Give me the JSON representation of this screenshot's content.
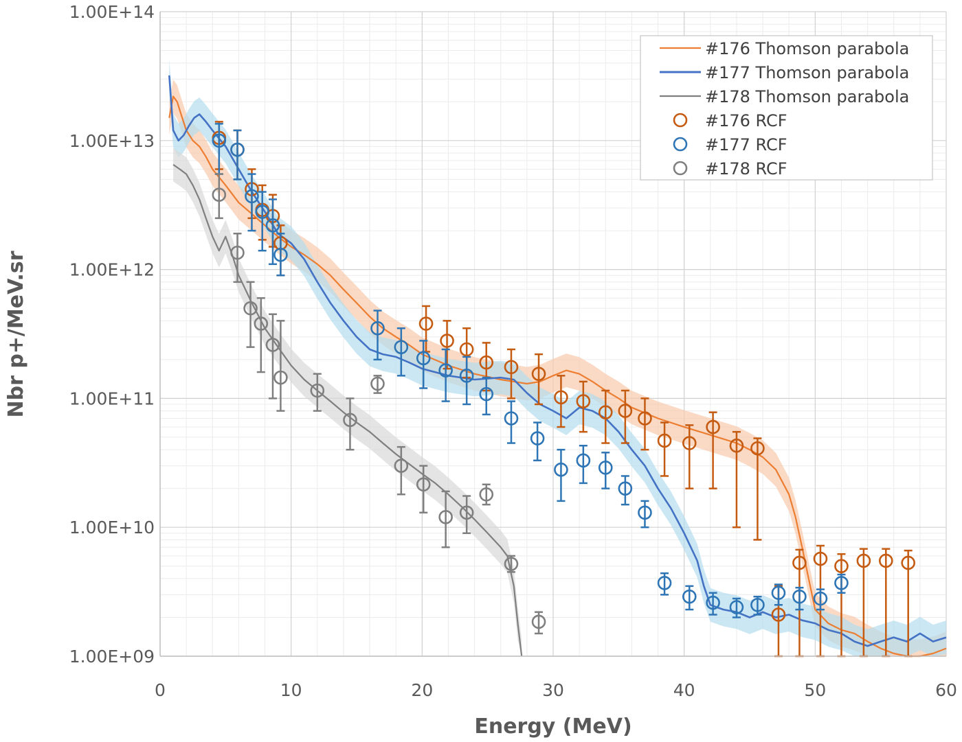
{
  "chart_data": {
    "type": "scatter",
    "title": "",
    "xlabel": "Energy (MeV)",
    "ylabel": "Nbr p+/MeV.sr",
    "xlim": [
      0,
      60
    ],
    "ylim": [
      1000000000.0,
      100000000000000.0
    ],
    "yscale": "log",
    "grid": true,
    "legend_position": "top-right",
    "x_ticks": [
      0,
      10,
      20,
      30,
      40,
      50,
      60
    ],
    "x_tick_labels": [
      "0",
      "10",
      "20",
      "30",
      "40",
      "50",
      "60"
    ],
    "y_ticks": [
      1000000000.0,
      10000000000.0,
      100000000000.0,
      1000000000000.0,
      10000000000000.0,
      100000000000000.0
    ],
    "y_tick_labels": [
      "1.00E+09",
      "1.00E+10",
      "1.00E+11",
      "1.00E+12",
      "1.00E+13",
      "1.00E+14"
    ],
    "series": [
      {
        "name": "#176 Thomson parabola",
        "kind": "line",
        "color": "#ED7D31",
        "band_color": "#F8CBAD",
        "x": [
          0.7,
          1.0,
          1.3,
          1.6,
          2.0,
          2.5,
          3.0,
          3.5,
          4.0,
          5.0,
          6.0,
          7.0,
          8.0,
          9.0,
          10.0,
          11.0,
          12.0,
          13.0,
          14.0,
          15.0,
          16.0,
          17.0,
          18.0,
          19.0,
          20.0,
          22.0,
          24.0,
          26.0,
          28.0,
          29.0,
          30.0,
          31.0,
          32.0,
          33.0,
          34.0,
          35.0,
          36.0,
          38.0,
          40.0,
          42.0,
          44.0,
          45.0,
          46.0,
          47.0,
          48.0,
          48.5,
          49.0,
          49.5,
          50.0,
          51.0,
          52.0,
          53.0,
          54.0,
          55.0,
          56.0,
          57.0,
          58.0,
          59.0,
          60.0
        ],
        "y": [
          15000000000000.0,
          22000000000000.0,
          20000000000000.0,
          16000000000000.0,
          12000000000000.0,
          10000000000000.0,
          9000000000000.0,
          7500000000000.0,
          6000000000000.0,
          4500000000000.0,
          3300000000000.0,
          2700000000000.0,
          2200000000000.0,
          1800000000000.0,
          1500000000000.0,
          1300000000000.0,
          1100000000000.0,
          900000000000.0,
          700000000000.0,
          550000000000.0,
          430000000000.0,
          350000000000.0,
          300000000000.0,
          260000000000.0,
          220000000000.0,
          180000000000.0,
          155000000000.0,
          140000000000.0,
          130000000000.0,
          135000000000.0,
          150000000000.0,
          165000000000.0,
          155000000000.0,
          135000000000.0,
          115000000000.0,
          100000000000.0,
          85000000000.0,
          70000000000.0,
          60000000000.0,
          52000000000.0,
          45000000000.0,
          40000000000.0,
          35000000000.0,
          28000000000.0,
          18000000000.0,
          12000000000.0,
          7000000000.0,
          4000000000.0,
          2300000000.0,
          1800000000.0,
          1600000000.0,
          1500000000.0,
          1300000000.0,
          1150000000.0,
          1050000000.0,
          1000000000.0,
          1000000000.0,
          1050000000.0,
          1150000000.0
        ]
      },
      {
        "name": "#177 Thomson parabola",
        "kind": "line",
        "color": "#4472C4",
        "band_color": "#B4DDEE",
        "x": [
          0.7,
          1.0,
          1.4,
          1.8,
          2.2,
          2.6,
          3.0,
          3.5,
          4.0,
          5.0,
          6.0,
          7.0,
          8.0,
          9.0,
          10.0,
          11.0,
          12.0,
          13.0,
          14.0,
          15.0,
          16.0,
          17.0,
          18.0,
          19.0,
          20.0,
          22.0,
          24.0,
          26.0,
          27.0,
          28.0,
          29.0,
          30.0,
          31.0,
          32.0,
          33.0,
          34.0,
          35.0,
          36.0,
          37.0,
          38.0,
          39.0,
          40.0,
          41.0,
          41.5,
          42.0,
          43.0,
          44.0,
          45.0,
          46.0,
          47.0,
          48.0,
          49.0,
          50.0,
          51.0,
          52.0,
          53.0,
          54.0,
          55.0,
          56.0,
          57.0,
          58.0,
          59.0,
          60.0
        ],
        "y": [
          32000000000000.0,
          12000000000000.0,
          10000000000000.0,
          11000000000000.0,
          13000000000000.0,
          15000000000000.0,
          16000000000000.0,
          14000000000000.0,
          12000000000000.0,
          9000000000000.0,
          6000000000000.0,
          4000000000000.0,
          2800000000000.0,
          1900000000000.0,
          1600000000000.0,
          1200000000000.0,
          800000000000.0,
          550000000000.0,
          400000000000.0,
          300000000000.0,
          240000000000.0,
          220000000000.0,
          210000000000.0,
          190000000000.0,
          170000000000.0,
          150000000000.0,
          140000000000.0,
          145000000000.0,
          140000000000.0,
          110000000000.0,
          90000000000.0,
          80000000000.0,
          70000000000.0,
          85000000000.0,
          80000000000.0,
          70000000000.0,
          55000000000.0,
          40000000000.0,
          30000000000.0,
          20000000000.0,
          14000000000.0,
          9000000000.0,
          5500000000.0,
          3500000000.0,
          2500000000.0,
          2300000000.0,
          2200000000.0,
          2000000000.0,
          2200000000.0,
          2000000000.0,
          2100000000.0,
          1900000000.0,
          1800000000.0,
          1600000000.0,
          1500000000.0,
          1300000000.0,
          1200000000.0,
          1300000000.0,
          1400000000.0,
          1300000000.0,
          1500000000.0,
          1300000000.0,
          1400000000.0
        ]
      },
      {
        "name": "#178 Thomson parabola",
        "kind": "line",
        "color": "#7F7F7F",
        "band_color": "#D9D9D9",
        "x": [
          1.0,
          1.5,
          2.0,
          2.5,
          3.0,
          3.5,
          4.0,
          4.5,
          5.0,
          5.5,
          6.0,
          7.0,
          8.0,
          9.0,
          10.0,
          11.0,
          12.0,
          13.0,
          14.0,
          15.0,
          16.0,
          17.0,
          18.0,
          19.0,
          20.0,
          21.0,
          22.0,
          23.0,
          24.0,
          25.0,
          26.0,
          26.5,
          27.0,
          27.3,
          27.6
        ],
        "y": [
          6500000000000.0,
          6000000000000.0,
          5500000000000.0,
          4500000000000.0,
          3500000000000.0,
          2500000000000.0,
          1800000000000.0,
          1400000000000.0,
          1800000000000.0,
          1300000000000.0,
          900000000000.0,
          550000000000.0,
          350000000000.0,
          250000000000.0,
          180000000000.0,
          140000000000.0,
          115000000000.0,
          95000000000.0,
          78000000000.0,
          65000000000.0,
          55000000000.0,
          45000000000.0,
          37000000000.0,
          31000000000.0,
          26000000000.0,
          22000000000.0,
          18000000000.0,
          14500000000.0,
          11500000000.0,
          9000000000.0,
          7000000000.0,
          6000000000.0,
          3500000000.0,
          1800000000.0,
          1000000000.0
        ]
      },
      {
        "name": "#176 RCF",
        "kind": "points",
        "color": "#C55A11",
        "x": [
          4.5,
          5.9,
          7.0,
          7.8,
          8.6,
          9.2,
          20.3,
          21.9,
          23.4,
          24.9,
          26.8,
          28.9,
          30.6,
          32.3,
          34.0,
          35.5,
          37.0,
          38.5,
          40.4,
          42.2,
          44.0,
          45.6,
          47.2,
          48.8,
          50.4,
          52.0,
          53.7,
          55.4,
          57.1
        ],
        "y": [
          10500000000000.0,
          8500000000000.0,
          4200000000000.0,
          2900000000000.0,
          2600000000000.0,
          1600000000000.0,
          380000000000.0,
          280000000000.0,
          240000000000.0,
          190000000000.0,
          175000000000.0,
          155000000000.0,
          102000000000.0,
          95000000000.0,
          78000000000.0,
          80000000000.0,
          70000000000.0,
          47000000000.0,
          45000000000.0,
          60000000000.0,
          43000000000.0,
          41000000000.0,
          2100000000.0,
          5300000000.0,
          5700000000.0,
          5000000000.0,
          5500000000.0,
          5500000000.0,
          5300000000.0
        ],
        "err_low": [
          6000000000000.0,
          5000000000000.0,
          2500000000000.0,
          1700000000000.0,
          1500000000000.0,
          900000000000.0,
          230000000000.0,
          170000000000.0,
          145000000000.0,
          115000000000.0,
          100000000000.0,
          90000000000.0,
          60000000000.0,
          55000000000.0,
          45000000000.0,
          45000000000.0,
          40000000000.0,
          25000000000.0,
          20000000000.0,
          20000000000.0,
          10000000000.0,
          8000000000.0,
          900000000.0,
          800000000.0,
          800000000.0,
          600000000.0,
          600000000.0,
          600000000.0,
          600000000.0
        ],
        "err_high": [
          14000000000000.0,
          12000000000000.0,
          6000000000000.0,
          4500000000000.0,
          3800000000000.0,
          2200000000000.0,
          520000000000.0,
          400000000000.0,
          350000000000.0,
          270000000000.0,
          240000000000.0,
          220000000000.0,
          150000000000.0,
          135000000000.0,
          115000000000.0,
          115000000000.0,
          100000000000.0,
          65000000000.0,
          62000000000.0,
          78000000000.0,
          55000000000.0,
          49000000000.0,
          3500000000.0,
          6700000000.0,
          7200000000.0,
          6200000000.0,
          6800000000.0,
          6800000000.0,
          6600000000.0
        ]
      },
      {
        "name": "#177 RCF",
        "kind": "points",
        "color": "#2E75B6",
        "x": [
          4.5,
          5.9,
          7.0,
          7.8,
          8.6,
          9.2,
          16.6,
          18.4,
          20.1,
          21.8,
          23.4,
          24.9,
          26.8,
          28.8,
          30.6,
          32.3,
          34.0,
          35.5,
          37.0,
          38.5,
          40.4,
          42.2,
          44.0,
          45.6,
          47.2,
          48.8,
          50.4,
          52.0
        ],
        "y": [
          10000000000000.0,
          8500000000000.0,
          3700000000000.0,
          2800000000000.0,
          2200000000000.0,
          1300000000000.0,
          350000000000.0,
          250000000000.0,
          205000000000.0,
          165000000000.0,
          150000000000.0,
          108000000000.0,
          70000000000.0,
          49000000000.0,
          28000000000.0,
          33000000000.0,
          29000000000.0,
          20000000000.0,
          13000000000.0,
          3700000000.0,
          2900000000.0,
          2600000000.0,
          2400000000.0,
          2500000000.0,
          3100000000.0,
          2900000000.0,
          2800000000.0,
          3700000000.0
        ],
        "err_low": [
          5500000000000.0,
          5000000000000.0,
          2000000000000.0,
          1400000000000.0,
          1100000000000.0,
          900000000000.0,
          200000000000.0,
          150000000000.0,
          120000000000.0,
          95000000000.0,
          90000000000.0,
          75000000000.0,
          45000000000.0,
          33000000000.0,
          16000000000.0,
          22000000000.0,
          20000000000.0,
          15000000000.0,
          10000000000.0,
          3000000000.0,
          2300000000.0,
          2100000000.0,
          2000000000.0,
          2100000000.0,
          2500000000.0,
          2300000000.0,
          2300000000.0,
          3100000000.0
        ],
        "err_high": [
          13500000000000.0,
          12000000000000.0,
          5500000000000.0,
          4000000000000.0,
          3500000000000.0,
          1900000000000.0,
          480000000000.0,
          350000000000.0,
          280000000000.0,
          240000000000.0,
          210000000000.0,
          145000000000.0,
          95000000000.0,
          65000000000.0,
          40000000000.0,
          43000000000.0,
          38000000000.0,
          25000000000.0,
          16000000000.0,
          4400000000.0,
          3500000000.0,
          3100000000.0,
          2800000000.0,
          2900000000.0,
          3600000000.0,
          3400000000.0,
          3300000000.0,
          4300000000.0
        ]
      },
      {
        "name": "#178 RCF",
        "kind": "points",
        "color": "#7F7F7F",
        "x": [
          4.5,
          5.9,
          6.9,
          7.7,
          8.6,
          9.2,
          12.0,
          14.5,
          16.6,
          18.4,
          20.1,
          21.8,
          23.4,
          24.9,
          26.8,
          28.9
        ],
        "y": [
          3800000000000.0,
          1350000000000.0,
          500000000000.0,
          380000000000.0,
          260000000000.0,
          145000000000.0,
          115000000000.0,
          68000000000.0,
          130000000000.0,
          30000000000.0,
          21500000000.0,
          12000000000.0,
          13000000000.0,
          18000000000.0,
          5200000000.0,
          1850000000.0
        ],
        "err_low": [
          2500000000000.0,
          800000000000.0,
          250000000000.0,
          160000000000.0,
          100000000000.0,
          80000000000.0,
          80000000000.0,
          40000000000.0,
          110000000000.0,
          18000000000.0,
          13000000000.0,
          7000000000.0,
          9000000000.0,
          15000000000.0,
          4500000000.0,
          1500000000.0
        ],
        "err_high": [
          5500000000000.0,
          1900000000000.0,
          800000000000.0,
          600000000000.0,
          450000000000.0,
          400000000000.0,
          155000000000.0,
          100000000000.0,
          150000000000.0,
          42000000000.0,
          30000000000.0,
          19000000000.0,
          17500000000.0,
          21500000000.0,
          6000000000.0,
          2200000000.0
        ]
      }
    ]
  }
}
